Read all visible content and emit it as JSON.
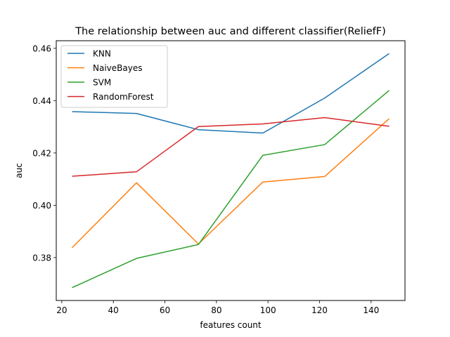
{
  "chart_data": {
    "type": "line",
    "title": "The relationship between auc and different classifier(ReliefF)",
    "xlabel": "features count",
    "ylabel": "auc",
    "x": [
      24,
      49,
      73,
      98,
      122,
      147
    ],
    "xlim": [
      17.85,
      153.15
    ],
    "ylim": [
      0.3636,
      0.4629
    ],
    "xticks": [
      20,
      40,
      60,
      80,
      100,
      120,
      140
    ],
    "yticks": [
      0.38,
      0.4,
      0.42,
      0.44,
      0.46
    ],
    "ytick_labels": [
      "0.38",
      "0.40",
      "0.42",
      "0.44",
      "0.46"
    ],
    "grid": false,
    "legend_position": "upper-left",
    "series": [
      {
        "name": "KNN",
        "color": "#1f77b4",
        "values": [
          0.4358,
          0.4351,
          0.4289,
          0.4276,
          0.441,
          0.458
        ]
      },
      {
        "name": "NaiveBayes",
        "color": "#ff7f0e",
        "values": [
          0.3838,
          0.4086,
          0.3852,
          0.4089,
          0.411,
          0.4331
        ]
      },
      {
        "name": "SVM",
        "color": "#2ca02c",
        "values": [
          0.3685,
          0.3797,
          0.385,
          0.4191,
          0.4232,
          0.4439
        ]
      },
      {
        "name": "RandomForest",
        "color": "#d62728",
        "values": [
          0.4111,
          0.4128,
          0.4301,
          0.4311,
          0.4335,
          0.4302
        ]
      }
    ]
  }
}
